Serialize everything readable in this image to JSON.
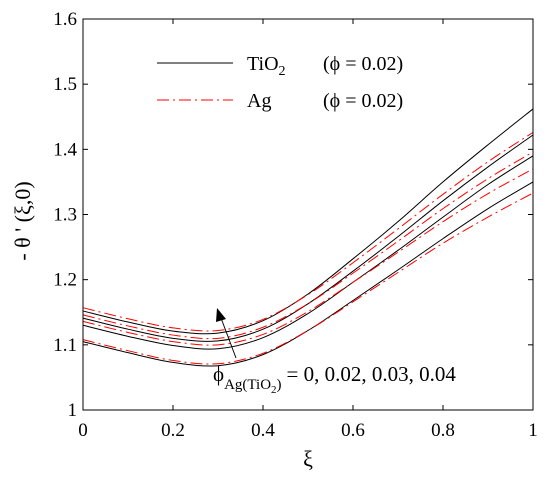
{
  "chart_data": {
    "type": "line",
    "xlabel": "ξ",
    "ylabel": "- θ ' (ξ,0)",
    "xlim": [
      0,
      1
    ],
    "ylim": [
      1,
      1.6
    ],
    "x_ticks": [
      "0",
      "0.2",
      "0.4",
      "0.6",
      "0.8",
      "1"
    ],
    "y_ticks": [
      "1",
      "1.1",
      "1.2",
      "1.3",
      "1.4",
      "1.5",
      "1.6"
    ],
    "grid": false,
    "legend_position": "top-center",
    "legend": [
      {
        "label_main": "TiO",
        "label_sub": "2",
        "label_param": "(ϕ = 0.02)",
        "style": "solid",
        "color": "#000000"
      },
      {
        "label_main": "Ag",
        "label_sub": "",
        "label_param": "(ϕ = 0.02)",
        "style": "dashed",
        "color": "#ff0000"
      }
    ],
    "annotation": {
      "prefix": "ϕ",
      "sub_main": "Ag(TiO",
      "sub_sub": "2",
      "sub_close": ")",
      "values": "= 0, 0.02, 0.03, 0.04",
      "arrow_direction": "up-left"
    },
    "x": [
      0,
      0.1,
      0.2,
      0.3,
      0.4,
      0.5,
      0.6,
      0.7,
      0.8,
      0.9,
      1.0
    ],
    "series": [
      {
        "group": "TiO2",
        "phi": 0,
        "values": [
          1.105,
          1.088,
          1.073,
          1.068,
          1.085,
          1.122,
          1.168,
          1.215,
          1.263,
          1.309,
          1.35
        ]
      },
      {
        "group": "TiO2",
        "phi": 0.02,
        "values": [
          1.13,
          1.113,
          1.099,
          1.094,
          1.111,
          1.148,
          1.196,
          1.245,
          1.296,
          1.346,
          1.39
        ]
      },
      {
        "group": "TiO2",
        "phi": 0.03,
        "values": [
          1.141,
          1.124,
          1.11,
          1.106,
          1.124,
          1.163,
          1.213,
          1.266,
          1.321,
          1.373,
          1.422
        ]
      },
      {
        "group": "TiO2",
        "phi": 0.04,
        "values": [
          1.152,
          1.135,
          1.121,
          1.118,
          1.137,
          1.178,
          1.232,
          1.289,
          1.35,
          1.407,
          1.462
        ]
      },
      {
        "group": "Ag",
        "phi": 0,
        "values": [
          1.108,
          1.091,
          1.076,
          1.071,
          1.087,
          1.122,
          1.166,
          1.211,
          1.256,
          1.296,
          1.333
        ]
      },
      {
        "group": "Ag",
        "phi": 0.02,
        "values": [
          1.136,
          1.119,
          1.105,
          1.1,
          1.116,
          1.151,
          1.196,
          1.242,
          1.289,
          1.332,
          1.37
        ]
      },
      {
        "group": "Ag",
        "phi": 0.03,
        "values": [
          1.146,
          1.129,
          1.115,
          1.11,
          1.127,
          1.163,
          1.21,
          1.259,
          1.309,
          1.355,
          1.396
        ]
      },
      {
        "group": "Ag",
        "phi": 0.04,
        "values": [
          1.157,
          1.14,
          1.126,
          1.122,
          1.139,
          1.177,
          1.226,
          1.278,
          1.331,
          1.381,
          1.426
        ]
      }
    ]
  }
}
